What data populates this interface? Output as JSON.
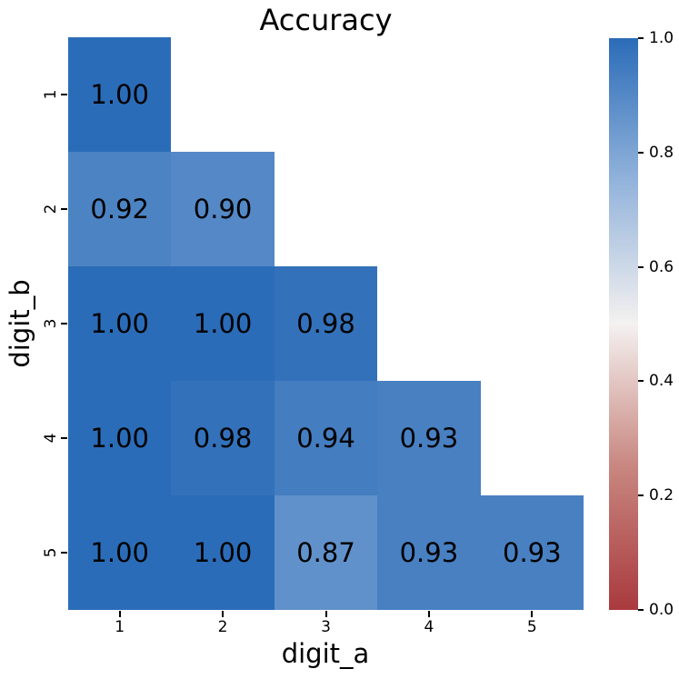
{
  "chart_data": {
    "type": "heatmap",
    "title": "Accuracy",
    "xlabel": "digit_a",
    "ylabel": "digit_b",
    "x_categories": [
      "1",
      "2",
      "3",
      "4",
      "5"
    ],
    "y_categories": [
      "1",
      "2",
      "3",
      "4",
      "5"
    ],
    "matrix": [
      [
        1.0,
        null,
        null,
        null,
        null
      ],
      [
        0.92,
        0.9,
        null,
        null,
        null
      ],
      [
        1.0,
        1.0,
        0.98,
        null,
        null
      ],
      [
        1.0,
        0.98,
        0.94,
        0.93,
        null
      ],
      [
        1.0,
        1.0,
        0.87,
        0.93,
        0.93
      ]
    ],
    "value_format_decimals": 2,
    "colorbar": {
      "tick_labels": [
        "1.0",
        "0.8",
        "0.6",
        "0.4",
        "0.2",
        "0.0"
      ],
      "tick_values": [
        1.0,
        0.8,
        0.6,
        0.4,
        0.2,
        0.0
      ],
      "range": [
        0.0,
        1.0
      ]
    },
    "colormap": {
      "name": "blue-high red-low diverging (vlag_r)",
      "anchor_values": [
        0.0,
        0.25,
        0.5,
        0.75,
        1.0
      ],
      "anchor_colors": [
        "#a93a3e",
        "#c8867f",
        "#f4f1f0",
        "#92b3db",
        "#2b6cb8"
      ]
    },
    "annotation_color": "#000000",
    "grid": false,
    "legend_position": "colorbar-right"
  }
}
